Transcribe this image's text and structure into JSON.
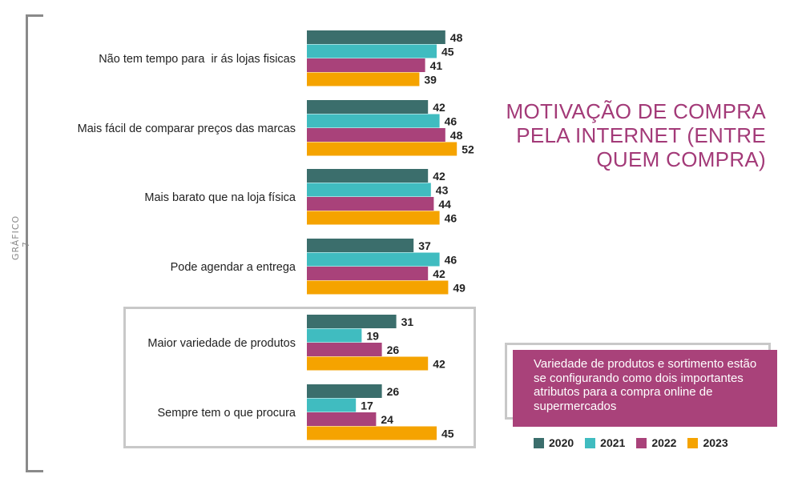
{
  "side_label": "GRÁFICO 7",
  "title": "MOTIVAÇÃO DE COMPRA PELA INTERNET (ENTRE QUEM COMPRA)",
  "note": "Variedade de produtos e sortimento estão se configurando como dois importantes atributos para a compra online de supermercados",
  "colors": {
    "2020": "#3b6e6c",
    "2021": "#40bcc0",
    "2022": "#a9427a",
    "2023": "#f5a300"
  },
  "chart_data": {
    "type": "bar",
    "orientation": "horizontal",
    "categories": [
      "Não tem tempo para  ir ás lojas fisicas",
      "Mais fácil de comparar preços das marcas",
      "Mais barato que na loja física",
      "Pode agendar a entrega",
      "Maior variedade de produtos",
      "Sempre tem o que procura"
    ],
    "series": [
      {
        "name": "2020",
        "values": [
          48,
          42,
          42,
          37,
          31,
          26
        ]
      },
      {
        "name": "2021",
        "values": [
          45,
          46,
          43,
          46,
          19,
          17
        ]
      },
      {
        "name": "2022",
        "values": [
          41,
          48,
          44,
          42,
          26,
          24
        ]
      },
      {
        "name": "2023",
        "values": [
          39,
          52,
          46,
          49,
          42,
          45
        ]
      }
    ],
    "data_labels": true,
    "legend_position": "bottom-right"
  }
}
